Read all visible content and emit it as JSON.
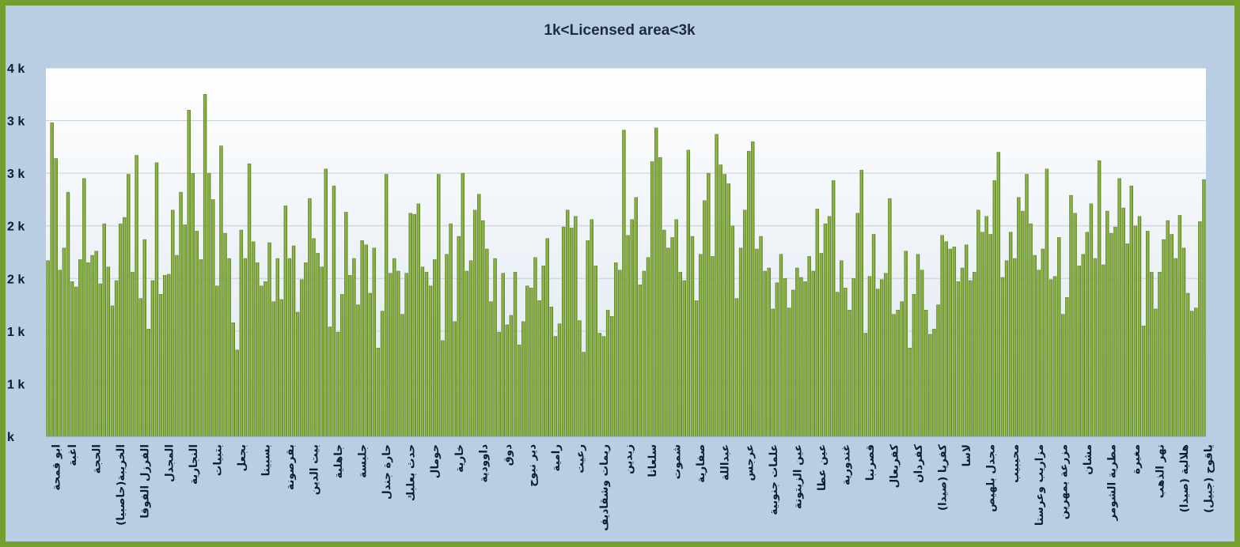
{
  "chart_data": {
    "type": "bar",
    "title": "1k<Licensed  area<3k",
    "xlabel": "",
    "ylabel": "",
    "ylim": [
      0,
      3.5
    ],
    "y_ticks": [
      {
        "value": 0,
        "label": "k"
      },
      {
        "value": 0.5,
        "label": "1 k"
      },
      {
        "value": 1.0,
        "label": "1 k"
      },
      {
        "value": 1.5,
        "label": "2 k"
      },
      {
        "value": 2.0,
        "label": "2 k"
      },
      {
        "value": 2.5,
        "label": "3 k"
      },
      {
        "value": 3.0,
        "label": "3 k"
      },
      {
        "value": 3.5,
        "label": "4 k"
      }
    ],
    "grid": true,
    "bar_color": "#7ea63a",
    "plot_background": [
      "#ffffff",
      "#dde6f1"
    ],
    "category_labels": [
      {
        "index": 2,
        "label": "ابو قمحة"
      },
      {
        "index": 6,
        "label": "اغبة"
      },
      {
        "index": 12,
        "label": "الحجة"
      },
      {
        "index": 18,
        "label": "الخريبة(حاصبيا)"
      },
      {
        "index": 24,
        "label": "الفرزل الفوقا"
      },
      {
        "index": 30,
        "label": "المجدل"
      },
      {
        "index": 36,
        "label": "النجارية"
      },
      {
        "index": 42,
        "label": "بتبيات"
      },
      {
        "index": 48,
        "label": "بجعل"
      },
      {
        "index": 54,
        "label": "بسبينا"
      },
      {
        "index": 60,
        "label": "بقرصونة"
      },
      {
        "index": 66,
        "label": "بيت الدين"
      },
      {
        "index": 72,
        "label": "جاهلية"
      },
      {
        "index": 78,
        "label": "جلبسة"
      },
      {
        "index": 84,
        "label": "حارة جندل"
      },
      {
        "index": 90,
        "label": "حدث بعلبك"
      },
      {
        "index": 96,
        "label": "حومال"
      },
      {
        "index": 102,
        "label": "خارية"
      },
      {
        "index": 108,
        "label": "داوودية"
      },
      {
        "index": 114,
        "label": "دوق"
      },
      {
        "index": 120,
        "label": "دير نبوح"
      },
      {
        "index": 126,
        "label": "رامية"
      },
      {
        "index": 132,
        "label": "رعيت"
      },
      {
        "index": 138,
        "label": "ريمات وشقاديف"
      },
      {
        "index": 144,
        "label": "زبدين"
      },
      {
        "index": 150,
        "label": "سلعاتا"
      },
      {
        "index": 156,
        "label": "شموت"
      },
      {
        "index": 162,
        "label": "صفارية"
      },
      {
        "index": 168,
        "label": "عبداللة"
      },
      {
        "index": 174,
        "label": "عرجس"
      },
      {
        "index": 180,
        "label": "علمات جنوبية"
      },
      {
        "index": 186,
        "label": "عين الزيتونة"
      },
      {
        "index": 192,
        "label": "عين عطا"
      },
      {
        "index": 198,
        "label": "غندورية"
      },
      {
        "index": 204,
        "label": "قصرنبا"
      },
      {
        "index": 210,
        "label": "كفربعال"
      },
      {
        "index": 216,
        "label": "كفردان"
      },
      {
        "index": 222,
        "label": "كفريا (صيدا)"
      },
      {
        "index": 228,
        "label": "لاسا"
      },
      {
        "index": 234,
        "label": "مجدل بلهيص"
      },
      {
        "index": 240,
        "label": "محيبيب"
      },
      {
        "index": 246,
        "label": "مزاريب وعرستا"
      },
      {
        "index": 252,
        "label": "مزرعة بمهرين"
      },
      {
        "index": 258,
        "label": "مشان"
      },
      {
        "index": 264,
        "label": "مطرية الشومر"
      },
      {
        "index": 270,
        "label": "مغيرة"
      },
      {
        "index": 276,
        "label": "نهر الذهب"
      },
      {
        "index": 282,
        "label": "هلالية (صيدا)"
      },
      {
        "index": 288,
        "label": "ياقوح (جبيل)"
      }
    ],
    "values": [
      1.67,
      2.98,
      2.64,
      1.58,
      1.79,
      2.32,
      1.47,
      1.42,
      1.68,
      2.45,
      1.65,
      1.72,
      1.76,
      1.45,
      2.02,
      1.61,
      1.24,
      1.48,
      2.02,
      2.08,
      2.49,
      1.56,
      2.67,
      1.31,
      1.87,
      1.02,
      1.48,
      2.6,
      1.35,
      1.53,
      1.54,
      2.15,
      1.72,
      2.32,
      2.01,
      3.1,
      2.5,
      1.95,
      1.68,
      3.25,
      2.5,
      2.25,
      1.43,
      2.76,
      1.93,
      1.69,
      1.08,
      0.82,
      1.96,
      1.69,
      2.59,
      1.85,
      1.65,
      1.43,
      1.47,
      1.84,
      1.28,
      1.69,
      1.3,
      2.19,
      1.69,
      1.81,
      1.18,
      1.49,
      1.65,
      2.26,
      1.88,
      1.74,
      1.61,
      2.54,
      1.04,
      2.38,
      0.99,
      1.35,
      2.13,
      1.53,
      1.69,
      1.25,
      1.86,
      1.82,
      1.36,
      1.79,
      0.84,
      1.19,
      2.49,
      1.55,
      1.69,
      1.57,
      1.16,
      1.55,
      2.12,
      2.11,
      2.21,
      1.61,
      1.56,
      1.43,
      1.68,
      2.49,
      0.91,
      1.73,
      2.02,
      1.09,
      1.9,
      2.5,
      1.57,
      1.67,
      2.15,
      2.3,
      2.05,
      1.78,
      1.28,
      1.69,
      0.99,
      1.55,
      1.06,
      1.15,
      1.56,
      0.87,
      1.09,
      1.43,
      1.41,
      1.7,
      1.29,
      1.62,
      1.88,
      1.23,
      0.95,
      1.07,
      1.99,
      2.15,
      1.98,
      2.09,
      1.1,
      0.8,
      1.86,
      2.06,
      1.62,
      0.98,
      0.95,
      1.2,
      1.14,
      1.65,
      1.58,
      2.91,
      1.91,
      2.06,
      2.27,
      1.44,
      1.57,
      1.7,
      2.61,
      2.93,
      2.65,
      1.96,
      1.79,
      1.89,
      2.06,
      1.56,
      1.48,
      2.72,
      1.9,
      1.29,
      1.73,
      2.24,
      2.5,
      1.71,
      2.87,
      2.58,
      2.49,
      2.4,
      2.0,
      1.31,
      1.79,
      2.15,
      2.71,
      2.8,
      1.78,
      1.9,
      1.57,
      1.6,
      1.21,
      1.46,
      1.73,
      1.5,
      1.22,
      1.39,
      1.6,
      1.51,
      1.47,
      1.71,
      1.57,
      2.16,
      1.74,
      2.02,
      2.09,
      2.43,
      1.37,
      1.67,
      1.41,
      1.2,
      1.5,
      2.12,
      2.53,
      0.98,
      1.52,
      1.92,
      1.4,
      1.49,
      1.55,
      2.26,
      1.16,
      1.2,
      1.28,
      1.76,
      0.84,
      1.35,
      1.73,
      1.58,
      1.2,
      0.97,
      1.02,
      1.25,
      1.91,
      1.85,
      1.78,
      1.8,
      1.47,
      1.6,
      1.82,
      1.48,
      1.56,
      2.15,
      1.94,
      2.09,
      1.92,
      2.43,
      2.7,
      1.51,
      1.67,
      1.94,
      1.69,
      2.27,
      2.14,
      2.49,
      2.02,
      1.72,
      1.58,
      1.78,
      2.54,
      1.49,
      1.52,
      1.89,
      1.16,
      1.32,
      2.29,
      2.12,
      1.62,
      1.73,
      1.94,
      2.21,
      1.69,
      2.62,
      1.63,
      2.14,
      1.93,
      1.99,
      2.45,
      2.17,
      1.83,
      2.38,
      2.0,
      2.09,
      1.05,
      1.95,
      1.56,
      1.21,
      1.56,
      1.87,
      2.05,
      1.92,
      1.69,
      2.1,
      1.79,
      1.36,
      1.19,
      1.22,
      2.04,
      2.44
    ]
  }
}
